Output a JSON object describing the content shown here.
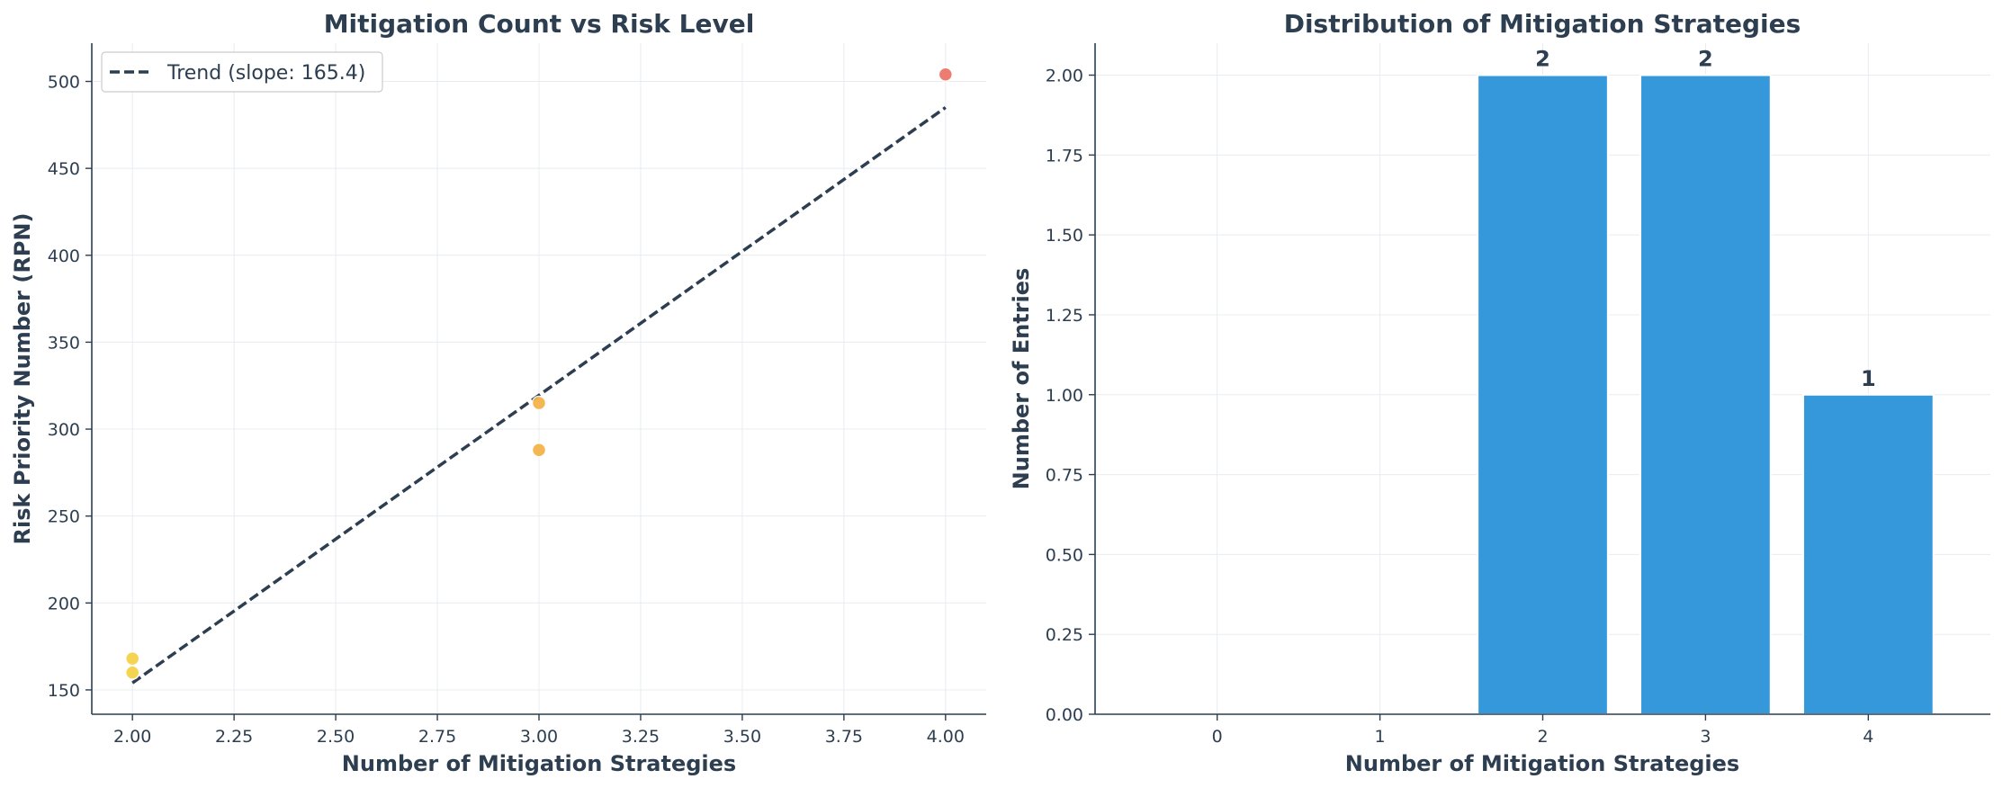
{
  "chart_data": [
    {
      "type": "scatter",
      "title": "Mitigation Count vs Risk Level",
      "xlabel": "Number of Mitigation Strategies",
      "ylabel": "Risk Priority Number (RPN)",
      "xlim": [
        1.9,
        4.1
      ],
      "ylim": [
        136,
        522
      ],
      "xticks": [
        2.0,
        2.25,
        2.5,
        2.75,
        3.0,
        3.25,
        3.5,
        3.75,
        4.0
      ],
      "xtick_labels": [
        "2.00",
        "2.25",
        "2.50",
        "2.75",
        "3.00",
        "3.25",
        "3.50",
        "3.75",
        "4.00"
      ],
      "yticks": [
        150,
        200,
        250,
        300,
        350,
        400,
        450,
        500
      ],
      "ytick_labels": [
        "150",
        "200",
        "250",
        "300",
        "350",
        "400",
        "450",
        "500"
      ],
      "grid": true,
      "legend_position": "top-left",
      "points": [
        {
          "x": 2,
          "y": 168,
          "color": "#f4d03f"
        },
        {
          "x": 2,
          "y": 160,
          "color": "#f4d03f"
        },
        {
          "x": 3,
          "y": 315,
          "color": "#f5b041"
        },
        {
          "x": 3,
          "y": 288,
          "color": "#f5b041"
        },
        {
          "x": 4,
          "y": 504,
          "color": "#ec7063"
        }
      ],
      "trend": {
        "label": "Trend (slope: 165.4)",
        "x": [
          2,
          4
        ],
        "y": [
          154,
          485
        ],
        "color": "#2c3e50",
        "style": "dashed"
      }
    },
    {
      "type": "bar",
      "title": "Distribution of Mitigation Strategies",
      "xlabel": "Number of Mitigation Strategies",
      "ylabel": "Number of Entries",
      "categories": [
        "0",
        "1",
        "2",
        "3",
        "4"
      ],
      "values": [
        0,
        0,
        2,
        2,
        1
      ],
      "data_labels": [
        "",
        "",
        "2",
        "2",
        "1"
      ],
      "ylim": [
        0,
        2.1
      ],
      "yticks": [
        0,
        0.25,
        0.5,
        0.75,
        1.0,
        1.25,
        1.5,
        1.75,
        2.0
      ],
      "ytick_labels": [
        "0.00",
        "0.25",
        "0.50",
        "0.75",
        "1.00",
        "1.25",
        "1.50",
        "1.75",
        "2.00"
      ],
      "grid": true,
      "bar_color": "#3498db"
    }
  ]
}
